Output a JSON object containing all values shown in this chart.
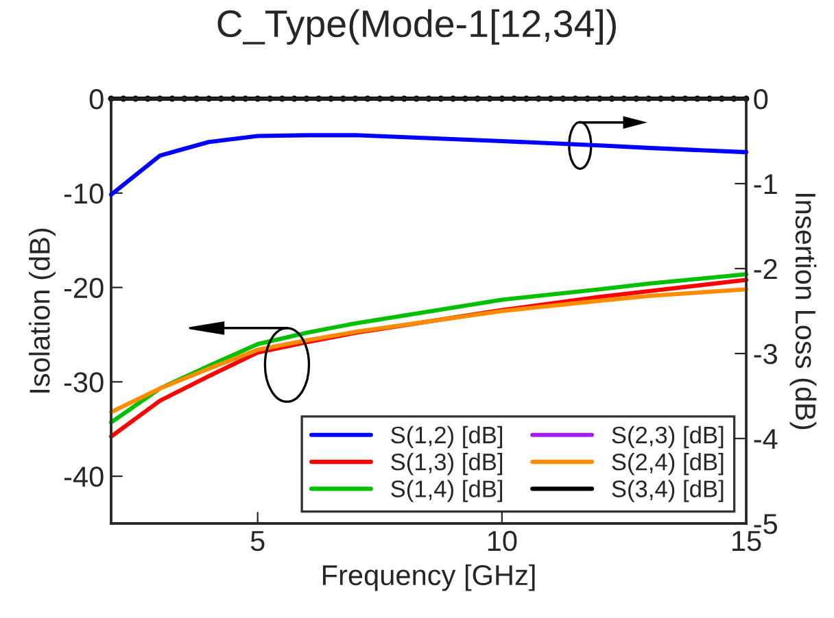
{
  "chart_data": {
    "type": "line",
    "title": "C_Type(Mode-1[12,34])",
    "xlabel": "Frequency [GHz]",
    "ylabel": "Isolation (dB)",
    "y2label": "Insertion Loss (dB)",
    "x": [
      2,
      3,
      4,
      5,
      6,
      7,
      10,
      12,
      13,
      15
    ],
    "xlim": [
      2,
      15
    ],
    "xticks": [
      {
        "value": 2,
        "label": null
      },
      5,
      10,
      15
    ],
    "ylim": [
      -45,
      0
    ],
    "yticks": [
      0,
      -10,
      -20,
      -30,
      -40
    ],
    "y2lim": [
      -5,
      0
    ],
    "y2ticks": [
      0,
      -1,
      -2,
      -3,
      -4,
      -5
    ],
    "grid": false,
    "legend": "bottom right",
    "line_style": "solid",
    "marker": "none",
    "series": [
      {
        "name": "S(1,2) [dB]",
        "color": "#0000ff",
        "axis": "y2",
        "values": [
          -1.13,
          -0.67,
          -0.51,
          -0.44,
          -0.43,
          -0.43,
          -0.5,
          -0.55,
          -0.58,
          -0.63
        ]
      },
      {
        "name": "S(1,3) [dB]",
        "color": "#ff0000",
        "values": [
          -35.8,
          -32.0,
          -29.4,
          -26.9,
          -25.8,
          -24.8,
          -22.4,
          -21.0,
          -20.4,
          -19.2
        ]
      },
      {
        "name": "S(1,4) [dB]",
        "color": "#00c000",
        "values": [
          -34.3,
          -30.7,
          -28.3,
          -26.0,
          -24.8,
          -23.8,
          -21.3,
          -20.2,
          -19.6,
          -18.6
        ]
      },
      {
        "name": "S(2,3) [dB]",
        "color": "#a020f0",
        "values": [
          null,
          null,
          null,
          null,
          null,
          null,
          null,
          null,
          null,
          null
        ]
      },
      {
        "name": "S(2,4) [dB]",
        "color": "#ff8c00",
        "values": [
          -33.2,
          -30.7,
          -28.6,
          -26.6,
          -25.6,
          -24.7,
          -22.5,
          -21.4,
          -20.9,
          -20.2
        ]
      },
      {
        "name": "S(3,4) [dB]",
        "color": "#000000",
        "marker": "circle",
        "x": [
          2,
          2.25,
          2.5,
          2.75,
          3,
          3.25,
          3.5,
          3.75,
          4,
          4.25,
          4.5,
          4.75,
          5,
          5.25,
          5.5,
          5.75,
          6,
          6.25,
          6.5,
          6.75,
          7,
          7.25,
          7.5,
          7.75,
          8,
          8.25,
          8.5,
          8.75,
          9,
          9.25,
          9.5,
          9.75,
          10,
          10.25,
          10.5,
          10.75,
          11,
          11.25,
          11.5,
          11.75,
          12,
          12.25,
          12.5,
          12.75,
          13,
          13.25,
          13.5,
          13.75,
          14,
          14.25,
          14.5,
          14.75,
          15
        ],
        "values": [
          0,
          0,
          0,
          0,
          0,
          0,
          0,
          0,
          0,
          0,
          0,
          0,
          0,
          0,
          0,
          0,
          0,
          0,
          0,
          0,
          0,
          0,
          0,
          0,
          0,
          0,
          0,
          0,
          0,
          0,
          0,
          0,
          0,
          0,
          0,
          0,
          0,
          0,
          0,
          0,
          0,
          0,
          0,
          0,
          0,
          0,
          0,
          0,
          0,
          0,
          0,
          0,
          0
        ]
      }
    ]
  }
}
